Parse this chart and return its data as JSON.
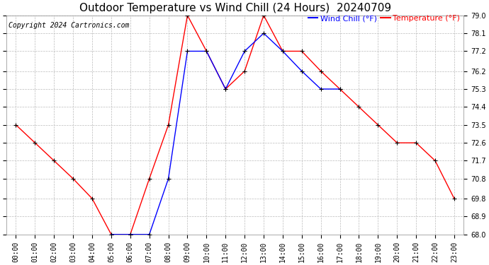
{
  "title": "Outdoor Temperature vs Wind Chill (24 Hours)  20240709",
  "copyright": "Copyright 2024 Cartronics.com",
  "legend_wind_chill": "Wind Chill (°F)",
  "legend_temp": "Temperature (°F)",
  "wind_chill_color": "blue",
  "temp_color": "red",
  "background_color": "#ffffff",
  "grid_color": "#bbbbbb",
  "ylim": [
    68.0,
    79.0
  ],
  "yticks": [
    68.0,
    68.9,
    69.8,
    70.8,
    71.7,
    72.6,
    73.5,
    74.4,
    75.3,
    76.2,
    77.2,
    78.1,
    79.0
  ],
  "hours": [
    0,
    1,
    2,
    3,
    4,
    5,
    6,
    7,
    8,
    9,
    10,
    11,
    12,
    13,
    14,
    15,
    16,
    17,
    18,
    19,
    20,
    21,
    22,
    23
  ],
  "temperature": [
    73.5,
    72.6,
    71.7,
    70.8,
    69.8,
    68.0,
    68.0,
    70.8,
    73.5,
    79.0,
    77.2,
    75.3,
    76.2,
    79.0,
    77.2,
    77.2,
    76.2,
    75.3,
    74.4,
    73.5,
    72.6,
    72.6,
    71.7,
    69.8
  ],
  "wind_chill_hours": [
    5,
    6,
    7,
    8,
    9,
    10,
    11,
    12,
    13,
    14,
    15,
    16,
    17
  ],
  "wind_chill": [
    68.0,
    68.0,
    68.0,
    70.8,
    77.2,
    77.2,
    75.3,
    77.2,
    78.1,
    77.2,
    76.2,
    75.3,
    75.3
  ],
  "title_fontsize": 11,
  "tick_fontsize": 7,
  "copyright_fontsize": 7,
  "legend_fontsize": 8
}
